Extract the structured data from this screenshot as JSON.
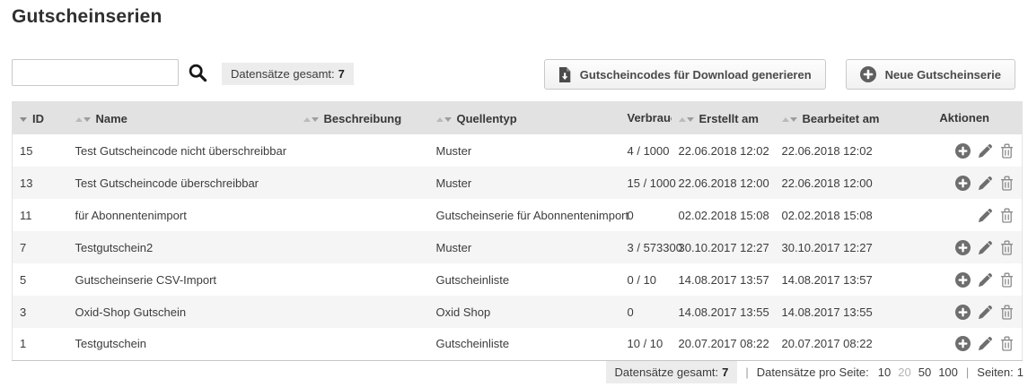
{
  "page": {
    "title": "Gutscheinserien"
  },
  "toolbar": {
    "search": {
      "value": "",
      "placeholder": ""
    },
    "records_total_label": "Datensätze gesamt:",
    "records_total_value": "7",
    "generate_button_label": "Gutscheincodes für Download generieren",
    "new_button_label": "Neue Gutscheinserie"
  },
  "icons": {
    "search": "magnifier",
    "generate_button": "file-download",
    "new_button": "plus-circle",
    "row_actions": {
      "add": "plus-circle",
      "edit": "pencil",
      "delete": "trash"
    },
    "sort": "triangle-up-down"
  },
  "colors": {
    "header_bg": "#e2e2e2",
    "row_stripe_bg": "#f5f5f5",
    "badge_bg": "#ececec",
    "icon_gray": "#6e6e6e",
    "trash_gray": "#8a8a8a",
    "button_border": "#c9c9c9"
  },
  "table": {
    "columns": [
      {
        "key": "id",
        "label": "ID",
        "sort": "desc"
      },
      {
        "key": "name",
        "label": "Name",
        "sort": "both"
      },
      {
        "key": "beschreibung",
        "label": "Beschreibung",
        "sort": "both"
      },
      {
        "key": "quellentyp",
        "label": "Quellentyp",
        "sort": "both"
      },
      {
        "key": "verbrauch",
        "label": "Verbrauch",
        "sort": "none"
      },
      {
        "key": "erstellt",
        "label": "Erstellt am",
        "sort": "both"
      },
      {
        "key": "bearbeitet",
        "label": "Bearbeitet am",
        "sort": "both"
      },
      {
        "key": "aktionen",
        "label": "Aktionen",
        "sort": "none"
      }
    ],
    "rows": [
      {
        "id": "15",
        "name": "Test Gutscheincode nicht überschreibbar",
        "beschreibung": "",
        "quellentyp": "Muster",
        "verbrauch": "4 / 1000",
        "erstellt": "22.06.2018 12:02",
        "bearbeitet": "22.06.2018 12:02",
        "actions": [
          "add",
          "edit",
          "delete"
        ]
      },
      {
        "id": "13",
        "name": "Test Gutscheincode überschreibbar",
        "beschreibung": "",
        "quellentyp": "Muster",
        "verbrauch": "15 / 1000",
        "erstellt": "22.06.2018 12:00",
        "bearbeitet": "22.06.2018 12:00",
        "actions": [
          "add",
          "edit",
          "delete"
        ]
      },
      {
        "id": "11",
        "name": "für Abonnentenimport",
        "beschreibung": "",
        "quellentyp": "Gutscheinserie für Abonnentenimport",
        "verbrauch": "0",
        "erstellt": "02.02.2018 15:08",
        "bearbeitet": "02.02.2018 15:08",
        "actions": [
          "edit",
          "delete"
        ]
      },
      {
        "id": "7",
        "name": "Testgutschein2",
        "beschreibung": "",
        "quellentyp": "Muster",
        "verbrauch": "3 / 573300",
        "erstellt": "30.10.2017 12:27",
        "bearbeitet": "30.10.2017 12:27",
        "actions": [
          "add",
          "edit",
          "delete"
        ]
      },
      {
        "id": "5",
        "name": "Gutscheinserie CSV-Import",
        "beschreibung": "",
        "quellentyp": "Gutscheinliste",
        "verbrauch": "0 / 10",
        "erstellt": "14.08.2017 13:57",
        "bearbeitet": "14.08.2017 13:57",
        "actions": [
          "add",
          "edit",
          "delete"
        ]
      },
      {
        "id": "3",
        "name": "Oxid-Shop Gutschein",
        "beschreibung": "",
        "quellentyp": "Oxid Shop",
        "verbrauch": "0",
        "erstellt": "14.08.2017 13:55",
        "bearbeitet": "14.08.2017 13:55",
        "actions": [
          "add",
          "edit",
          "delete"
        ]
      },
      {
        "id": "1",
        "name": "Testgutschein",
        "beschreibung": "",
        "quellentyp": "Gutscheinliste",
        "verbrauch": "10 / 10",
        "erstellt": "20.07.2017 08:22",
        "bearbeitet": "20.07.2017 08:22",
        "actions": [
          "add",
          "edit",
          "delete"
        ]
      }
    ]
  },
  "footer": {
    "records_total_label": "Datensätze gesamt:",
    "records_total_value": "7",
    "per_page_label": "Datensätze pro Seite:",
    "per_page_options": [
      {
        "value": "10",
        "active": false
      },
      {
        "value": "20",
        "active": true
      },
      {
        "value": "50",
        "active": false
      },
      {
        "value": "100",
        "active": false
      }
    ],
    "pages_label": "Seiten:",
    "pages_value": "1"
  }
}
